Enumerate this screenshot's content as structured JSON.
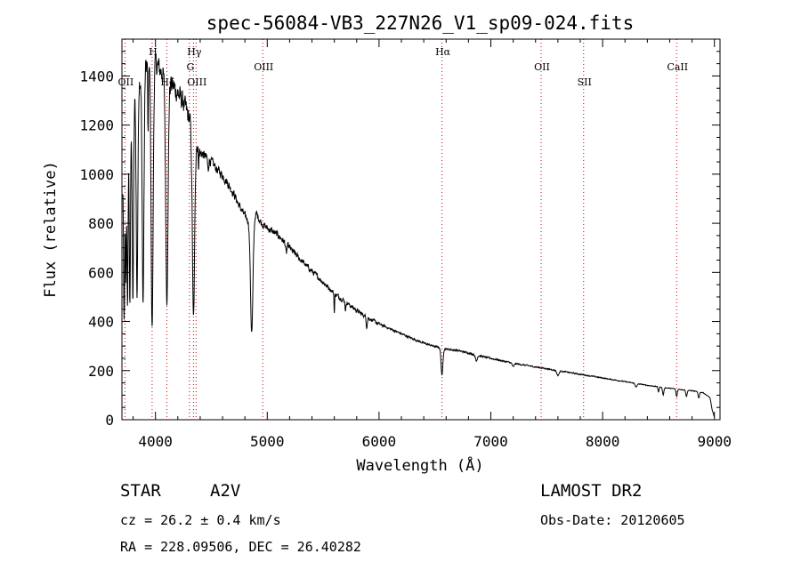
{
  "chart_data": {
    "type": "line",
    "title": "spec-56084-VB3_227N26_V1_sp09-024.fits",
    "xlabel": "Wavelength (Å)",
    "ylabel": "Flux (relative)",
    "xlim": [
      3700,
      9050
    ],
    "ylim": [
      0,
      1550
    ],
    "x_ticks": [
      4000,
      5000,
      6000,
      7000,
      8000,
      9000
    ],
    "y_ticks": [
      0,
      200,
      400,
      600,
      800,
      1000,
      1200,
      1400
    ],
    "line_color": "#000000",
    "marker_color": "#cc0000",
    "lines": [
      {
        "label": "OII",
        "x": 3727,
        "label_row": 2
      },
      {
        "label": "H",
        "x": 3970,
        "label_row": 0
      },
      {
        "label": "Hδ",
        "x": 4102,
        "label_row": 2
      },
      {
        "label": "Hγ",
        "x": 4340,
        "label_row": 0
      },
      {
        "label": "G",
        "x": 4304,
        "label_row": 1
      },
      {
        "label": "OIII",
        "x": 4363,
        "label_row": 2
      },
      {
        "label": "OIII",
        "x": 4960,
        "label_row": 1
      },
      {
        "label": "Hα",
        "x": 6563,
        "label_row": 0
      },
      {
        "label": "OII",
        "x": 7450,
        "label_row": 1
      },
      {
        "label": "SII",
        "x": 7830,
        "label_row": 2
      },
      {
        "label": "CaII",
        "x": 8662,
        "label_row": 1
      }
    ],
    "continuum": [
      [
        3700,
        900
      ],
      [
        3750,
        1150
      ],
      [
        3800,
        1280
      ],
      [
        3850,
        1380
      ],
      [
        3900,
        1440
      ],
      [
        3950,
        1460
      ],
      [
        4000,
        1450
      ],
      [
        4050,
        1420
      ],
      [
        4100,
        1380
      ],
      [
        4150,
        1360
      ],
      [
        4200,
        1330
      ],
      [
        4250,
        1290
      ],
      [
        4300,
        1230
      ],
      [
        4350,
        1150
      ],
      [
        4400,
        1090
      ],
      [
        4450,
        1070
      ],
      [
        4500,
        1050
      ],
      [
        4550,
        1020
      ],
      [
        4600,
        995
      ],
      [
        4650,
        960
      ],
      [
        4700,
        920
      ],
      [
        4750,
        870
      ],
      [
        4800,
        830
      ],
      [
        4850,
        800
      ],
      [
        4900,
        840
      ],
      [
        4950,
        800
      ],
      [
        5000,
        780
      ],
      [
        5100,
        750
      ],
      [
        5200,
        700
      ],
      [
        5300,
        650
      ],
      [
        5400,
        605
      ],
      [
        5500,
        560
      ],
      [
        5600,
        515
      ],
      [
        5700,
        480
      ],
      [
        5800,
        445
      ],
      [
        5900,
        415
      ],
      [
        6000,
        390
      ],
      [
        6100,
        370
      ],
      [
        6200,
        350
      ],
      [
        6300,
        330
      ],
      [
        6400,
        312
      ],
      [
        6500,
        298
      ],
      [
        6600,
        288
      ],
      [
        6700,
        282
      ],
      [
        6800,
        272
      ],
      [
        6900,
        260
      ],
      [
        7000,
        250
      ],
      [
        7200,
        230
      ],
      [
        7400,
        215
      ],
      [
        7600,
        200
      ],
      [
        7800,
        185
      ],
      [
        8000,
        170
      ],
      [
        8200,
        155
      ],
      [
        8400,
        140
      ],
      [
        8600,
        128
      ],
      [
        8800,
        118
      ],
      [
        8900,
        110
      ],
      [
        8960,
        90
      ],
      [
        8980,
        40
      ],
      [
        9000,
        10
      ]
    ],
    "absorptions": [
      {
        "x": 3720,
        "depth": 600,
        "width": 5
      },
      {
        "x": 3735,
        "depth": 500,
        "width": 4
      },
      {
        "x": 3750,
        "depth": 700,
        "width": 5
      },
      {
        "x": 3771,
        "depth": 750,
        "width": 5
      },
      {
        "x": 3798,
        "depth": 800,
        "width": 6
      },
      {
        "x": 3835,
        "depth": 850,
        "width": 7
      },
      {
        "x": 3889,
        "depth": 950,
        "width": 8
      },
      {
        "x": 3934,
        "depth": 300,
        "width": 3
      },
      {
        "x": 3970,
        "depth": 1080,
        "width": 9
      },
      {
        "x": 4102,
        "depth": 900,
        "width": 10
      },
      {
        "x": 4340,
        "depth": 750,
        "width": 10
      },
      {
        "x": 4385,
        "depth": 60,
        "width": 4
      },
      {
        "x": 4471,
        "depth": 50,
        "width": 4
      },
      {
        "x": 4861,
        "depth": 450,
        "width": 11
      },
      {
        "x": 5170,
        "depth": 40,
        "width": 5
      },
      {
        "x": 5600,
        "depth": 80,
        "width": 3
      },
      {
        "x": 5700,
        "depth": 40,
        "width": 3
      },
      {
        "x": 5890,
        "depth": 40,
        "width": 5
      },
      {
        "x": 6563,
        "depth": 110,
        "width": 8
      },
      {
        "x": 6870,
        "depth": 25,
        "width": 8
      },
      {
        "x": 7200,
        "depth": 15,
        "width": 8
      },
      {
        "x": 7600,
        "depth": 20,
        "width": 10
      },
      {
        "x": 8300,
        "depth": 15,
        "width": 8
      },
      {
        "x": 8500,
        "depth": 20,
        "width": 5
      },
      {
        "x": 8542,
        "depth": 30,
        "width": 6
      },
      {
        "x": 8662,
        "depth": 30,
        "width": 6
      },
      {
        "x": 8750,
        "depth": 25,
        "width": 6
      },
      {
        "x": 8860,
        "depth": 25,
        "width": 6
      }
    ]
  },
  "info": {
    "object_class": "STAR",
    "subclass": "A2V",
    "survey": "LAMOST DR2",
    "cz": "cz = 26.2 ± 0.4 km/s",
    "obs_date": "Obs-Date: 20120605",
    "coords": "RA = 228.09506, DEC =  26.40282"
  }
}
